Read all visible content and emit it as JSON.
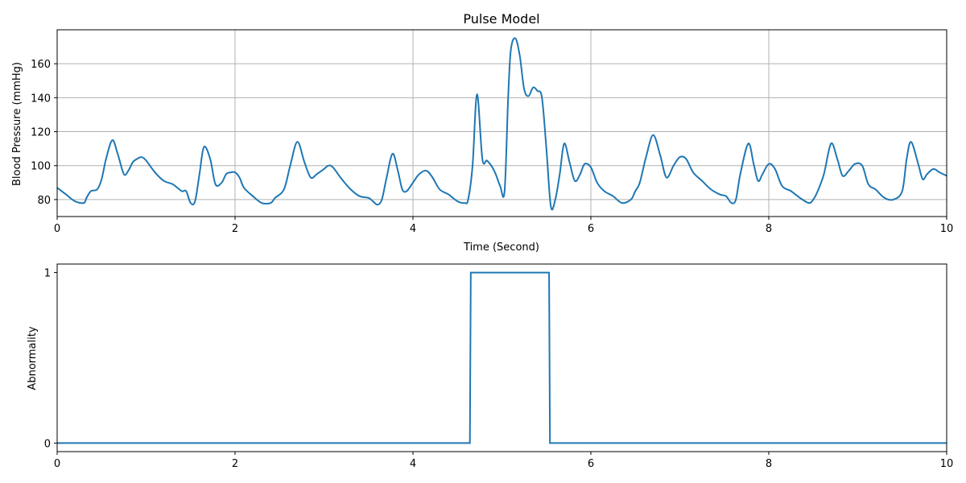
{
  "chart_data": [
    {
      "type": "line",
      "title": "Pulse Model",
      "xlabel": "Time (Second)",
      "ylabel": "Blood Pressure (mmHg)",
      "xlim": [
        0,
        10
      ],
      "ylim": [
        70,
        180
      ],
      "xticks": [
        0,
        2,
        4,
        6,
        8,
        10
      ],
      "xtick_labels": [
        "0",
        "2",
        "4",
        "6",
        "8",
        "10"
      ],
      "yticks": [
        80,
        100,
        120,
        140,
        160
      ],
      "ytick_labels": [
        "80",
        "100",
        "120",
        "140",
        "160"
      ],
      "grid": true,
      "color": "#1f77b4",
      "series": [
        {
          "x": [
            0.0,
            0.1,
            0.2,
            0.3,
            0.33,
            0.38,
            0.45,
            0.5,
            0.55,
            0.62,
            0.68,
            0.75,
            0.8,
            0.85,
            0.9,
            0.95,
            1.0,
            1.1,
            1.2,
            1.3,
            1.4,
            1.45,
            1.5,
            1.55,
            1.6,
            1.65,
            1.72,
            1.78,
            1.85,
            1.9,
            1.95,
            2.0,
            2.05,
            2.1,
            2.2,
            2.3,
            2.4,
            2.45,
            2.55,
            2.62,
            2.7,
            2.78,
            2.85,
            2.92,
            3.0,
            3.05,
            3.1,
            3.2,
            3.3,
            3.4,
            3.5,
            3.55,
            3.6,
            3.65,
            3.7,
            3.77,
            3.83,
            3.88,
            3.93,
            4.0,
            4.07,
            4.15,
            4.22,
            4.3,
            4.4,
            4.5,
            4.58,
            4.62,
            4.67,
            4.72,
            4.78,
            4.83,
            4.88,
            4.93,
            4.98,
            5.03,
            5.07,
            5.1,
            5.15,
            5.2,
            5.25,
            5.3,
            5.35,
            5.4,
            5.45,
            5.5,
            5.55,
            5.6,
            5.65,
            5.7,
            5.76,
            5.82,
            5.88,
            5.93,
            6.0,
            6.07,
            6.15,
            6.25,
            6.35,
            6.45,
            6.5,
            6.55,
            6.62,
            6.7,
            6.78,
            6.85,
            6.93,
            7.0,
            7.07,
            7.15,
            7.25,
            7.35,
            7.45,
            7.52,
            7.58,
            7.63,
            7.68,
            7.77,
            7.83,
            7.88,
            7.93,
            8.0,
            8.07,
            8.15,
            8.25,
            8.35,
            8.45,
            8.5,
            8.55,
            8.62,
            8.7,
            8.77,
            8.83,
            8.9,
            8.97,
            9.05,
            9.12,
            9.2,
            9.3,
            9.4,
            9.5,
            9.55,
            9.6,
            9.68,
            9.73,
            9.78,
            9.85,
            9.92,
            10.0
          ],
          "y": [
            87,
            83,
            79,
            78,
            81,
            85,
            86,
            92,
            104,
            115,
            107,
            95,
            97,
            102,
            104,
            105,
            103,
            96,
            91,
            89,
            85,
            85,
            78,
            79,
            95,
            111,
            104,
            89,
            90,
            95,
            96,
            96,
            93,
            87,
            82,
            78,
            78,
            81,
            86,
            100,
            114,
            102,
            93,
            95,
            98,
            100,
            99,
            92,
            86,
            82,
            81,
            79,
            77,
            80,
            92,
            107,
            97,
            86,
            85,
            90,
            95,
            97,
            93,
            86,
            83,
            79,
            78,
            80,
            100,
            142,
            104,
            103,
            100,
            95,
            88,
            85,
            140,
            168,
            175,
            165,
            145,
            141,
            146,
            144,
            140,
            110,
            76,
            80,
            95,
            113,
            102,
            91,
            95,
            101,
            99,
            90,
            85,
            82,
            78,
            80,
            85,
            90,
            105,
            118,
            106,
            93,
            100,
            105,
            104,
            96,
            91,
            86,
            83,
            82,
            78,
            80,
            95,
            113,
            101,
            91,
            95,
            101,
            98,
            88,
            85,
            81,
            78,
            80,
            85,
            95,
            113,
            104,
            94,
            97,
            101,
            100,
            89,
            86,
            81,
            80,
            85,
            104,
            114,
            101,
            92,
            95,
            98,
            96,
            94
          ]
        }
      ]
    },
    {
      "type": "line",
      "title": "",
      "xlabel": "",
      "ylabel": "Abnormality",
      "xlim": [
        0,
        10
      ],
      "ylim": [
        -0.05,
        1.05
      ],
      "xticks": [
        0,
        2,
        4,
        6,
        8,
        10
      ],
      "xtick_labels": [
        "0",
        "2",
        "4",
        "6",
        "8",
        "10"
      ],
      "yticks": [
        0,
        1
      ],
      "ytick_labels": [
        "0",
        "1"
      ],
      "grid": false,
      "color": "#1f77b4",
      "series": [
        {
          "x": [
            0,
            4.64,
            4.65,
            5.53,
            5.54,
            10
          ],
          "y": [
            0,
            0,
            1,
            1,
            0,
            0
          ]
        }
      ]
    }
  ]
}
